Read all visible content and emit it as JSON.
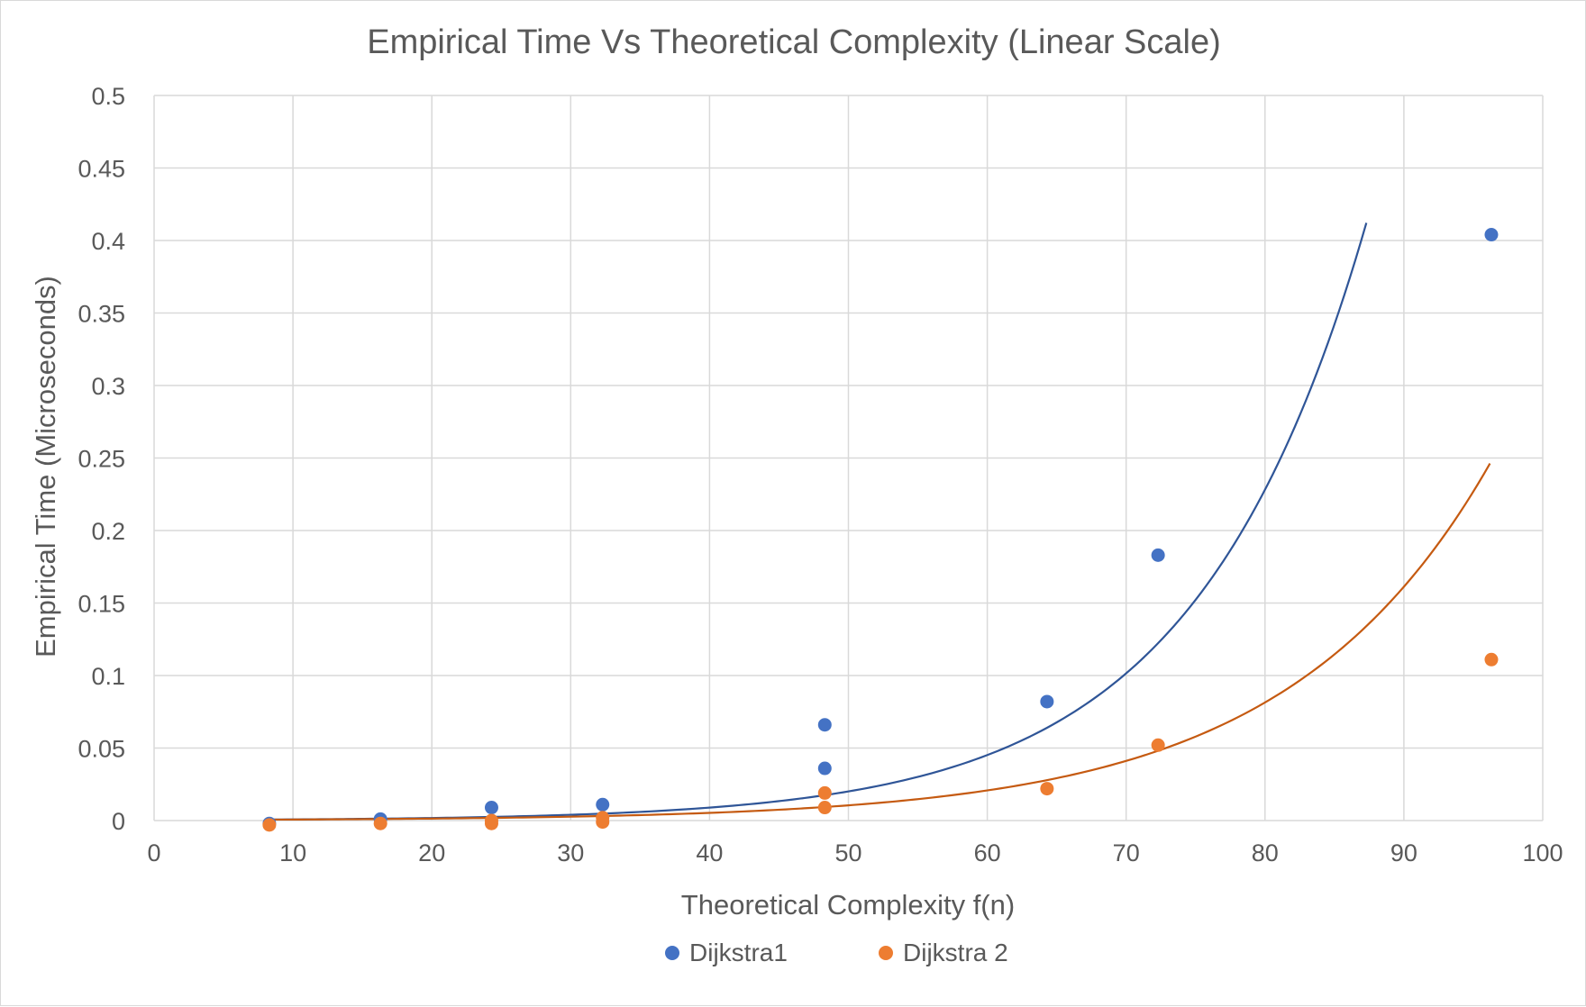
{
  "chart_data": {
    "type": "scatter",
    "title": "Empirical Time Vs Theoretical Complexity (Linear Scale)",
    "xlabel": "Theoretical Complexity f(n)",
    "ylabel": "Empirical Time (Microseconds)",
    "xlim": [
      0,
      100
    ],
    "ylim": [
      0,
      0.5
    ],
    "x_ticks": [
      "0",
      "10",
      "20",
      "30",
      "40",
      "50",
      "60",
      "70",
      "80",
      "90",
      "100"
    ],
    "y_ticks": [
      "0",
      "0.05",
      "0.1",
      "0.15",
      "0.2",
      "0.25",
      "0.3",
      "0.35",
      "0.4",
      "0.45",
      "0.5"
    ],
    "grid": true,
    "legend_position": "bottom",
    "series": [
      {
        "name": "Dijkstra1",
        "color": "#4472c4",
        "trendline_color": "#2f5597",
        "points": [
          {
            "x": 8.3,
            "y": -0.002
          },
          {
            "x": 16.3,
            "y": 0.001
          },
          {
            "x": 24.3,
            "y": 0.009
          },
          {
            "x": 32.3,
            "y": 0.011
          },
          {
            "x": 48.3,
            "y": 0.036
          },
          {
            "x": 48.3,
            "y": 0.066
          },
          {
            "x": 64.3,
            "y": 0.082
          },
          {
            "x": 72.3,
            "y": 0.183
          },
          {
            "x": 96.3,
            "y": 0.404
          }
        ],
        "trendline": {
          "type": "exponential",
          "a": 0.00035,
          "b": 0.081,
          "x_range": [
            8,
            87.3
          ]
        }
      },
      {
        "name": "Dijkstra 2",
        "color": "#ed7d31",
        "trendline_color": "#c55a11",
        "points": [
          {
            "x": 8.3,
            "y": -0.003
          },
          {
            "x": 16.3,
            "y": -0.002
          },
          {
            "x": 24.3,
            "y": -0.002
          },
          {
            "x": 24.3,
            "y": 0.0
          },
          {
            "x": 32.3,
            "y": -0.001
          },
          {
            "x": 32.3,
            "y": 0.002
          },
          {
            "x": 48.3,
            "y": 0.009
          },
          {
            "x": 48.3,
            "y": 0.019
          },
          {
            "x": 64.3,
            "y": 0.022
          },
          {
            "x": 72.3,
            "y": 0.052
          },
          {
            "x": 96.3,
            "y": 0.111
          }
        ],
        "trendline": {
          "type": "exponential",
          "a": 0.000345,
          "b": 0.0683,
          "x_range": [
            8,
            96.2
          ]
        }
      }
    ]
  }
}
